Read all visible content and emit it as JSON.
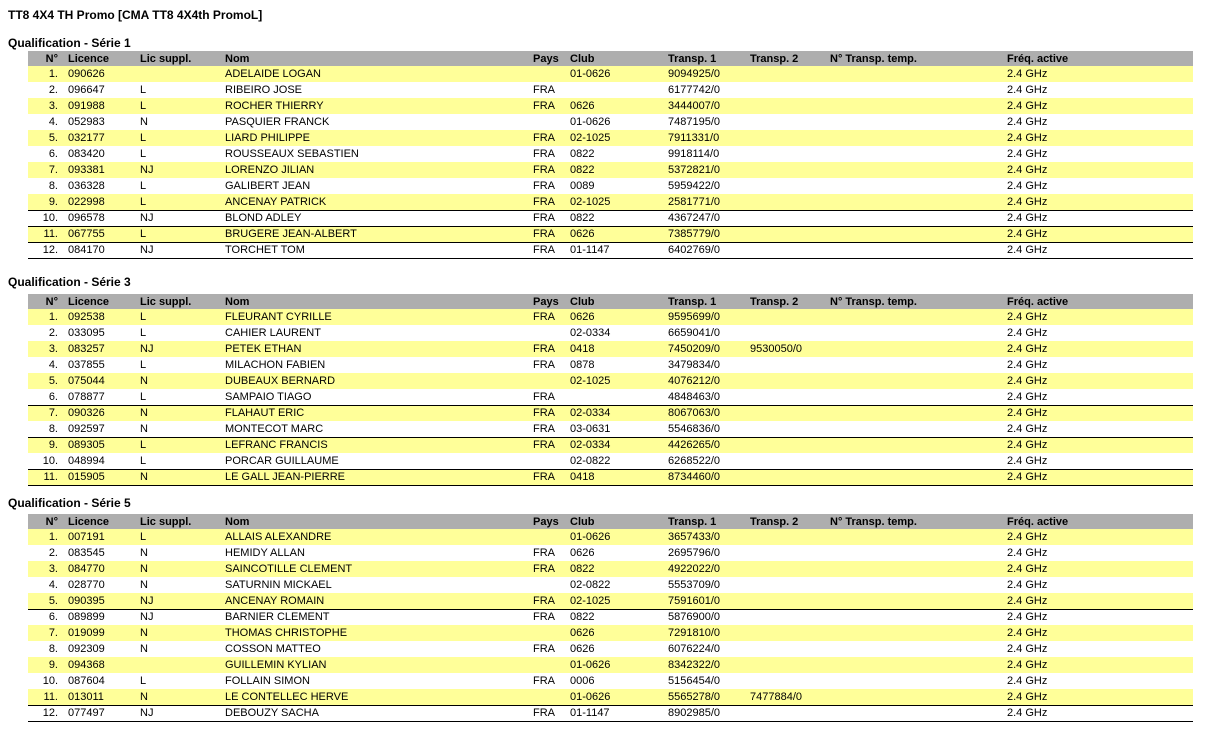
{
  "title": "TT8 4X4 TH Promo [CMA TT8 4X4th PromoL]",
  "columns": [
    "N°",
    "Licence",
    "Lic suppl.",
    "Nom",
    "Pays",
    "Club",
    "Transp. 1",
    "Transp. 2",
    "N° Transp. temp.",
    "Fréq. active"
  ],
  "colors": {
    "row_highlight": "#ffff99",
    "header_bg": "#aeaeae",
    "separator_line": "#000000"
  },
  "series": [
    {
      "title": "Qualification - Série 1",
      "separators_after": [
        9,
        10,
        11,
        12
      ],
      "rows": [
        [
          "1.",
          "090626",
          "",
          "ADELAIDE LOGAN",
          "",
          "01-0626",
          "9094925/0",
          "",
          "",
          "2.4 GHz"
        ],
        [
          "2.",
          "096647",
          "L",
          "RIBEIRO JOSE",
          "FRA",
          "",
          "6177742/0",
          "",
          "",
          "2.4 GHz"
        ],
        [
          "3.",
          "091988",
          "L",
          "ROCHER THIERRY",
          "FRA",
          "0626",
          "3444007/0",
          "",
          "",
          "2.4 GHz"
        ],
        [
          "4.",
          "052983",
          "N",
          "PASQUIER FRANCK",
          "",
          "01-0626",
          "7487195/0",
          "",
          "",
          "2.4 GHz"
        ],
        [
          "5.",
          "032177",
          "L",
          "LIARD PHILIPPE",
          "FRA",
          "02-1025",
          "7911331/0",
          "",
          "",
          "2.4 GHz"
        ],
        [
          "6.",
          "083420",
          "L",
          "ROUSSEAUX SEBASTIEN",
          "FRA",
          "0822",
          "9918114/0",
          "",
          "",
          "2.4 GHz"
        ],
        [
          "7.",
          "093381",
          "NJ",
          "LORENZO JILIAN",
          "FRA",
          "0822",
          "5372821/0",
          "",
          "",
          "2.4 GHz"
        ],
        [
          "8.",
          "036328",
          "L",
          "GALIBERT JEAN",
          "FRA",
          "0089",
          "5959422/0",
          "",
          "",
          "2.4 GHz"
        ],
        [
          "9.",
          "022998",
          "L",
          "ANCENAY PATRICK",
          "FRA",
          "02-1025",
          "2581771/0",
          "",
          "",
          "2.4 GHz"
        ],
        [
          "10.",
          "096578",
          "NJ",
          "BLOND ADLEY",
          "FRA",
          "0822",
          "4367247/0",
          "",
          "",
          "2.4 GHz"
        ],
        [
          "11.",
          "067755",
          "L",
          "BRUGERE JEAN-ALBERT",
          "FRA",
          "0626",
          "7385779/0",
          "",
          "",
          "2.4 GHz"
        ],
        [
          "12.",
          "084170",
          "NJ",
          "TORCHET TOM",
          "FRA",
          "01-1147",
          "6402769/0",
          "",
          "",
          "2.4 GHz"
        ]
      ]
    },
    {
      "title": "Qualification - Série 3",
      "separators_after": [
        6,
        8,
        10,
        11
      ],
      "rows": [
        [
          "1.",
          "092538",
          "L",
          "FLEURANT CYRILLE",
          "FRA",
          "0626",
          "9595699/0",
          "",
          "",
          "2.4 GHz"
        ],
        [
          "2.",
          "033095",
          "L",
          "CAHIER LAURENT",
          "",
          "02-0334",
          "6659041/0",
          "",
          "",
          "2.4 GHz"
        ],
        [
          "3.",
          "083257",
          "NJ",
          "PETEK ETHAN",
          "FRA",
          "0418",
          "7450209/0",
          "9530050/0",
          "",
          "2.4 GHz"
        ],
        [
          "4.",
          "037855",
          "L",
          "MILACHON FABIEN",
          "FRA",
          "0878",
          "3479834/0",
          "",
          "",
          "2.4 GHz"
        ],
        [
          "5.",
          "075044",
          "N",
          "DUBEAUX BERNARD",
          "",
          "02-1025",
          "4076212/0",
          "",
          "",
          "2.4 GHz"
        ],
        [
          "6.",
          "078877",
          "L",
          "SAMPAIO TIAGO",
          "FRA",
          "",
          "4848463/0",
          "",
          "",
          "2.4 GHz"
        ],
        [
          "7.",
          "090326",
          "N",
          "FLAHAUT ERIC",
          "FRA",
          "02-0334",
          "8067063/0",
          "",
          "",
          "2.4 GHz"
        ],
        [
          "8.",
          "092597",
          "N",
          "MONTECOT MARC",
          "FRA",
          "03-0631",
          "5546836/0",
          "",
          "",
          "2.4 GHz"
        ],
        [
          "9.",
          "089305",
          "L",
          "LEFRANC FRANCIS",
          "FRA",
          "02-0334",
          "4426265/0",
          "",
          "",
          "2.4 GHz"
        ],
        [
          "10.",
          "048994",
          "L",
          "PORCAR GUILLAUME",
          "",
          "02-0822",
          "6268522/0",
          "",
          "",
          "2.4 GHz"
        ],
        [
          "11.",
          "015905",
          "N",
          "LE GALL JEAN-PIERRE",
          "FRA",
          "0418",
          "8734460/0",
          "",
          "",
          "2.4 GHz"
        ]
      ]
    },
    {
      "title": "Qualification - Série 5",
      "separators_after": [
        5,
        11,
        12
      ],
      "rows": [
        [
          "1.",
          "007191",
          "L",
          "ALLAIS ALEXANDRE",
          "",
          "01-0626",
          "3657433/0",
          "",
          "",
          "2.4 GHz"
        ],
        [
          "2.",
          "083545",
          "N",
          "HEMIDY ALLAN",
          "FRA",
          "0626",
          "2695796/0",
          "",
          "",
          "2.4 GHz"
        ],
        [
          "3.",
          "084770",
          "N",
          "SAINCOTILLE CLEMENT",
          "FRA",
          "0822",
          "4922022/0",
          "",
          "",
          "2.4 GHz"
        ],
        [
          "4.",
          "028770",
          "N",
          "SATURNIN MICKAEL",
          "",
          "02-0822",
          "5553709/0",
          "",
          "",
          "2.4 GHz"
        ],
        [
          "5.",
          "090395",
          "NJ",
          "ANCENAY ROMAIN",
          "FRA",
          "02-1025",
          "7591601/0",
          "",
          "",
          "2.4 GHz"
        ],
        [
          "6.",
          "089899",
          "NJ",
          "BARNIER CLEMENT",
          "FRA",
          "0822",
          "5876900/0",
          "",
          "",
          "2.4 GHz"
        ],
        [
          "7.",
          "019099",
          "N",
          "THOMAS CHRISTOPHE",
          "",
          "0626",
          "7291810/0",
          "",
          "",
          "2.4 GHz"
        ],
        [
          "8.",
          "092309",
          "N",
          "COSSON MATTEO",
          "FRA",
          "0626",
          "6076224/0",
          "",
          "",
          "2.4 GHz"
        ],
        [
          "9.",
          "094368",
          "",
          "GUILLEMIN KYLIAN",
          "",
          "01-0626",
          "8342322/0",
          "",
          "",
          "2.4 GHz"
        ],
        [
          "10.",
          "087604",
          "L",
          "FOLLAIN SIMON",
          "FRA",
          "0006",
          "5156454/0",
          "",
          "",
          "2.4 GHz"
        ],
        [
          "11.",
          "013011",
          "N",
          "LE CONTELLEC HERVE",
          "",
          "01-0626",
          "5565278/0",
          "7477884/0",
          "",
          "2.4 GHz"
        ],
        [
          "12.",
          "077497",
          "NJ",
          "DEBOUZY SACHA",
          "FRA",
          "01-1147",
          "8902985/0",
          "",
          "",
          "2.4 GHz"
        ]
      ]
    }
  ]
}
